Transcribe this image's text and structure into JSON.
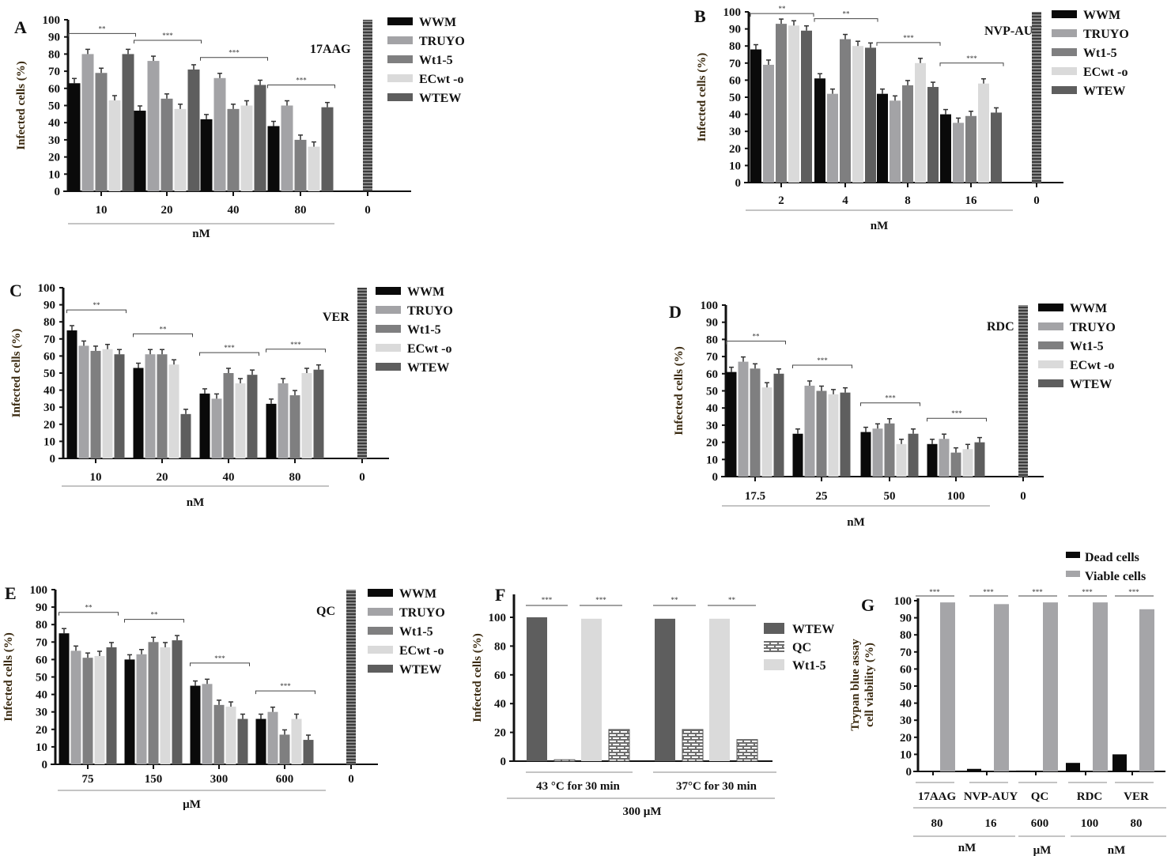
{
  "chart_data": [
    {
      "type": "bar",
      "panel": "A",
      "title": "17AAG",
      "ylabel": "Infected cells (%)",
      "xlabel": "nM",
      "ylim": [
        0,
        100
      ],
      "yticks": [
        0,
        10,
        20,
        30,
        40,
        50,
        60,
        70,
        80,
        90,
        100
      ],
      "categories": [
        "10",
        "20",
        "40",
        "80"
      ],
      "control_label": "0",
      "control_value": 100,
      "series": [
        {
          "name": "WWM",
          "values": [
            63,
            47,
            42,
            38
          ]
        },
        {
          "name": "TRUYO",
          "values": [
            80,
            76,
            66,
            50
          ]
        },
        {
          "name": "Wt1-5",
          "values": [
            69,
            54,
            48,
            30
          ]
        },
        {
          "name": "ECwt -o",
          "values": [
            53,
            48,
            50,
            26
          ]
        },
        {
          "name": "WTEW",
          "values": [
            80,
            71,
            62,
            49
          ]
        }
      ],
      "significance": [
        "**",
        "***",
        "***",
        "***"
      ]
    },
    {
      "type": "bar",
      "panel": "B",
      "title": "NVP-AUY",
      "ylabel": "Infected cells (%)",
      "xlabel": "nM",
      "ylim": [
        0,
        100
      ],
      "yticks": [
        0,
        10,
        20,
        30,
        40,
        50,
        60,
        70,
        80,
        90,
        100
      ],
      "categories": [
        "2",
        "4",
        "8",
        "16"
      ],
      "control_label": "0",
      "control_value": 100,
      "series": [
        {
          "name": "WWM",
          "values": [
            78,
            61,
            52,
            40
          ]
        },
        {
          "name": "TRUYO",
          "values": [
            69,
            52,
            48,
            35
          ]
        },
        {
          "name": "Wt1-5",
          "values": [
            93,
            84,
            57,
            39
          ]
        },
        {
          "name": "ECwt -o",
          "values": [
            92,
            80,
            70,
            58
          ]
        },
        {
          "name": "WTEW",
          "values": [
            89,
            79,
            56,
            41
          ]
        }
      ],
      "significance": [
        "**",
        "**",
        "***",
        "***"
      ]
    },
    {
      "type": "bar",
      "panel": "C",
      "title": "VER",
      "ylabel": "Infected cells (%)",
      "xlabel": "nM",
      "ylim": [
        0,
        100
      ],
      "yticks": [
        0,
        10,
        20,
        30,
        40,
        50,
        60,
        70,
        80,
        90,
        100
      ],
      "categories": [
        "10",
        "20",
        "40",
        "80"
      ],
      "control_label": "0",
      "control_value": 100,
      "series": [
        {
          "name": "WWM",
          "values": [
            75,
            53,
            38,
            32
          ]
        },
        {
          "name": "TRUYO",
          "values": [
            66,
            61,
            35,
            44
          ]
        },
        {
          "name": "Wt1-5",
          "values": [
            63,
            61,
            50,
            37
          ]
        },
        {
          "name": "ECwt -o",
          "values": [
            64,
            55,
            44,
            50
          ]
        },
        {
          "name": "WTEW",
          "values": [
            61,
            26,
            49,
            52
          ]
        }
      ],
      "significance": [
        "**",
        "**",
        "***",
        "***"
      ]
    },
    {
      "type": "bar",
      "panel": "D",
      "title": "RDC",
      "ylabel": "Infected cells (%)",
      "xlabel": "nM",
      "ylim": [
        0,
        100
      ],
      "yticks": [
        0,
        10,
        20,
        30,
        40,
        50,
        60,
        70,
        80,
        90,
        100
      ],
      "categories": [
        "17.5",
        "25",
        "50",
        "100"
      ],
      "control_label": "0",
      "control_value": 100,
      "series": [
        {
          "name": "WWM",
          "values": [
            61,
            25,
            26,
            19
          ]
        },
        {
          "name": "TRUYO",
          "values": [
            67,
            53,
            28,
            22
          ]
        },
        {
          "name": "Wt1-5",
          "values": [
            63,
            50,
            31,
            14
          ]
        },
        {
          "name": "ECwt -o",
          "values": [
            52,
            48,
            19,
            16
          ]
        },
        {
          "name": "WTEW",
          "values": [
            60,
            49,
            25,
            20
          ]
        }
      ],
      "significance": [
        "**",
        "***",
        "***",
        "***"
      ]
    },
    {
      "type": "bar",
      "panel": "E",
      "title": "QC",
      "ylabel": "Infected cells (%)",
      "xlabel": "µM",
      "ylim": [
        0,
        100
      ],
      "yticks": [
        0,
        10,
        20,
        30,
        40,
        50,
        60,
        70,
        80,
        90,
        100
      ],
      "categories": [
        "75",
        "150",
        "300",
        "600"
      ],
      "control_label": "0",
      "control_value": 100,
      "series": [
        {
          "name": "WWM",
          "values": [
            75,
            60,
            45,
            26
          ]
        },
        {
          "name": "TRUYO",
          "values": [
            65,
            63,
            46,
            30
          ]
        },
        {
          "name": "Wt1-5",
          "values": [
            61,
            70,
            34,
            17
          ]
        },
        {
          "name": "ECwt -o",
          "values": [
            62,
            67,
            33,
            26
          ]
        },
        {
          "name": "WTEW",
          "values": [
            67,
            71,
            26,
            14
          ]
        }
      ],
      "significance": [
        "**",
        "**",
        "***",
        "***"
      ]
    },
    {
      "type": "bar",
      "panel": "F",
      "title": "",
      "ylabel": "Infected cells (%)",
      "xlabel": "300  µM",
      "ylim": [
        0,
        100
      ],
      "yticks": [
        0,
        20,
        40,
        60,
        80,
        100
      ],
      "categories": [
        "43 °C for 30 min",
        "37°C for 30 min"
      ],
      "legend": [
        "WTEW",
        "QC",
        "Wt1-5"
      ],
      "bars": [
        {
          "group": "43 °C for 30 min",
          "series": "WTEW",
          "value": 100
        },
        {
          "group": "43 °C for 30 min",
          "series": "QC",
          "value": 1
        },
        {
          "group": "43 °C for 30 min",
          "series": "Wt1-5",
          "value": 99
        },
        {
          "group": "43 °C for 30 min",
          "series": "QC",
          "value": 22
        },
        {
          "group": "37°C for 30 min",
          "series": "WTEW",
          "value": 99
        },
        {
          "group": "37°C for 30 min",
          "series": "QC",
          "value": 22
        },
        {
          "group": "37°C for 30 min",
          "series": "Wt1-5",
          "value": 99
        },
        {
          "group": "37°C for 30 min",
          "series": "QC",
          "value": 15
        }
      ],
      "significance": [
        "***",
        "***",
        "**",
        "**"
      ]
    },
    {
      "type": "bar",
      "panel": "G",
      "title": "",
      "ylabel": "Trypan blue assay cell viability (%)",
      "ylim": [
        0,
        100
      ],
      "yticks": [
        0,
        10,
        20,
        30,
        40,
        50,
        60,
        70,
        80,
        90,
        100
      ],
      "categories": [
        "17AAG",
        "NVP-AUY",
        "QC",
        "RDC",
        "VER"
      ],
      "doses": [
        "80",
        "16",
        "600",
        "100",
        "80"
      ],
      "units": [
        "nM",
        "µM",
        "nM"
      ],
      "series": [
        {
          "name": "Dead cells",
          "values": [
            0,
            1.5,
            0.5,
            5,
            10
          ]
        },
        {
          "name": "Viable cells",
          "values": [
            99,
            98,
            99,
            99,
            95
          ]
        }
      ],
      "significance": [
        "***",
        "***",
        "***",
        "***",
        "***"
      ]
    }
  ],
  "colors": {
    "WWM": "#0a0a0a",
    "TRUYO": "#a3a3a6",
    "Wt1-5": "#7f7f80",
    "ECwt -o": "#dadada",
    "WTEW": "#5e5e5e",
    "Dead cells": "#0a0a0a",
    "Viable cells": "#a5a5a8",
    "QC": "#7a7a7a"
  }
}
